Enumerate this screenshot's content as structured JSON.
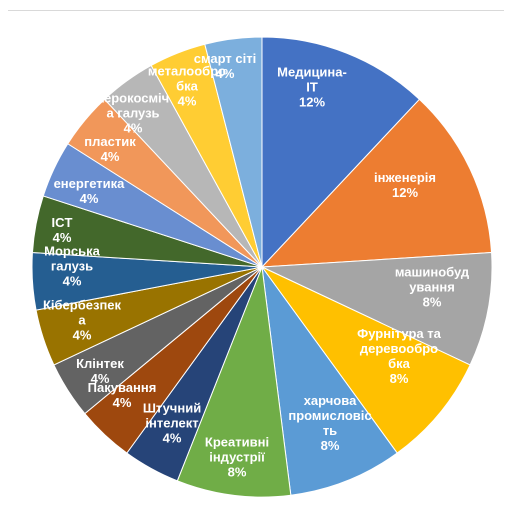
{
  "chart_data": {
    "type": "pie",
    "title": "",
    "start_angle_deg": 0,
    "direction": "clockwise",
    "legend": "none",
    "slices": [
      {
        "label": "Медицина-ІТ",
        "value": 12,
        "display_value": "12%",
        "color": "#4472c4"
      },
      {
        "label": "інженерія",
        "value": 12,
        "display_value": "12%",
        "color": "#ed7d31"
      },
      {
        "label": "машинобудування",
        "value": 8,
        "display_value": "8%",
        "color": "#a5a5a5"
      },
      {
        "label": "Фурнітура та деревообробка",
        "value": 8,
        "display_value": "8%",
        "color": "#ffc000"
      },
      {
        "label": "харчова промисловість",
        "value": 8,
        "display_value": "8%",
        "color": "#5b9bd5"
      },
      {
        "label": "Креативні індустрії",
        "value": 8,
        "display_value": "8%",
        "color": "#70ad47"
      },
      {
        "label": "Штучний інтелект",
        "value": 4,
        "display_value": "4%",
        "color": "#264478"
      },
      {
        "label": "Пакування",
        "value": 4,
        "display_value": "4%",
        "color": "#9e480e"
      },
      {
        "label": "Клінтек",
        "value": 4,
        "display_value": "4%",
        "color": "#636363"
      },
      {
        "label": "Кібербезпека",
        "value": 4,
        "display_value": "4%",
        "color": "#997300"
      },
      {
        "label": "Морська галузь",
        "value": 4,
        "display_value": "4%",
        "color": "#255e91"
      },
      {
        "label": "ICT",
        "value": 4,
        "display_value": "4%",
        "color": "#43682b"
      },
      {
        "label": "енергетика",
        "value": 4,
        "display_value": "4%",
        "color": "#698ed0"
      },
      {
        "label": "пластик",
        "value": 4,
        "display_value": "4%",
        "color": "#f1975a"
      },
      {
        "label": "аерокосмічна галузь",
        "value": 4,
        "display_value": "4%",
        "color": "#b7b7b7"
      },
      {
        "label": "металообробка",
        "value": 4,
        "display_value": "4%",
        "color": "#ffcd33"
      },
      {
        "label": "смарт сіті",
        "value": 4,
        "display_value": "4%",
        "color": "#7cafdd"
      }
    ],
    "label_lines": [
      [
        "Медицина-",
        "ІТ",
        "12%"
      ],
      [
        "інженерія",
        "",
        "12%"
      ],
      [
        "машинобуд",
        "ування",
        "8%"
      ],
      [
        "Фурнітура та",
        "деревообро",
        "бка",
        "8%"
      ],
      [
        "харчова",
        "промисловіс",
        "ть",
        "8%"
      ],
      [
        "Креативні",
        "індустрії",
        "8%"
      ],
      [
        "Штучний",
        "інтелект",
        "4%"
      ],
      [
        "Пакування",
        "4%"
      ],
      [
        "Клінтек",
        "4%"
      ],
      [
        "Кібербезпек",
        "а",
        "4%"
      ],
      [
        "Морська",
        "галузь",
        "4%"
      ],
      [
        "ICT",
        "4%"
      ],
      [
        "енергетика",
        "4%"
      ],
      [
        "пластик",
        "4%"
      ],
      [
        "аерокосміч",
        "а галузь",
        "4%"
      ],
      [
        "металообро",
        "бка",
        "4%"
      ],
      [
        "смарт сіті",
        "4%"
      ]
    ]
  }
}
